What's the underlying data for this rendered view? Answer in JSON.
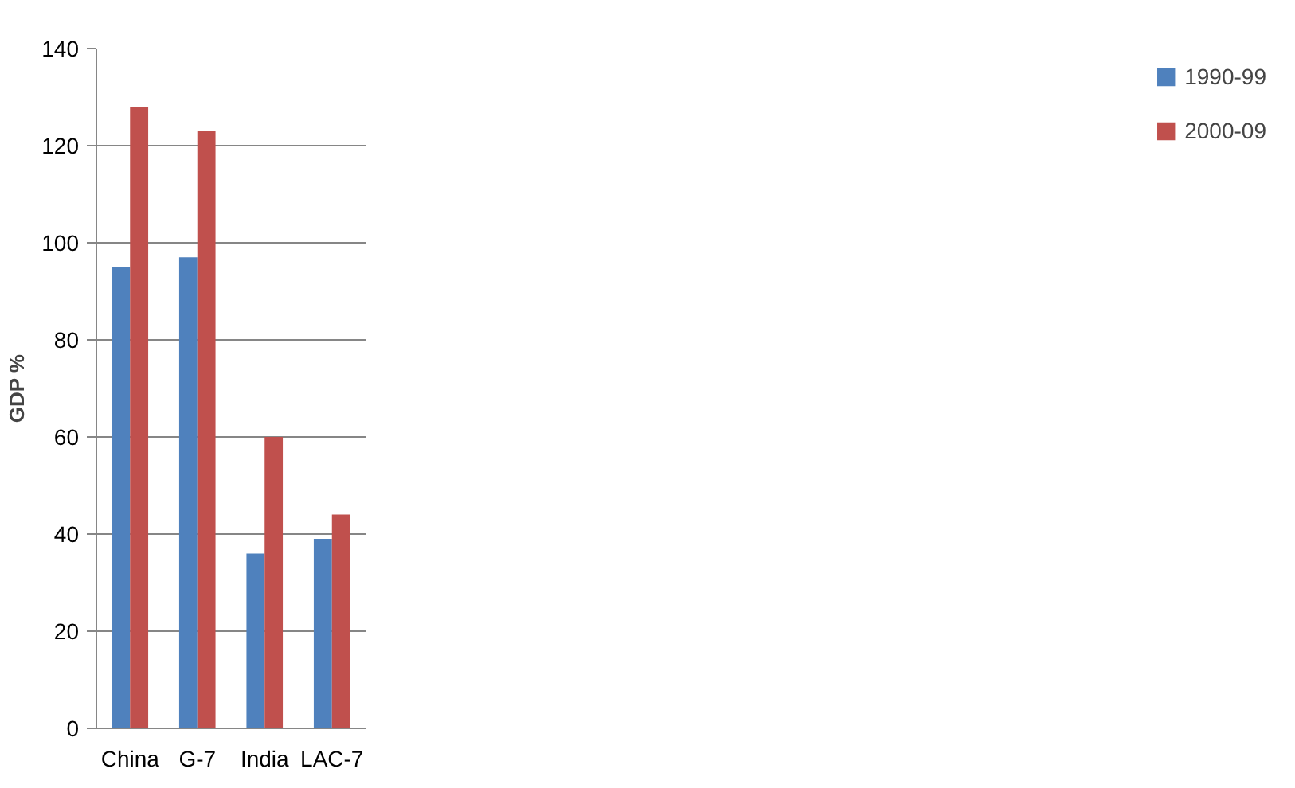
{
  "chart_data": {
    "type": "bar",
    "ylabel": "GDP %",
    "categories": [
      "China",
      "G-7",
      "India",
      "LAC-7"
    ],
    "series": [
      {
        "name": "1990-99",
        "color": "#4f81bd",
        "values": [
          95,
          97,
          36,
          39
        ]
      },
      {
        "name": "2000-09",
        "color": "#c0504d",
        "values": [
          128,
          123,
          60,
          44
        ]
      }
    ],
    "ylim": [
      0,
      140
    ],
    "yticks": [
      0,
      20,
      40,
      60,
      80,
      100,
      120,
      140
    ],
    "grid": "y",
    "legend": "right"
  }
}
